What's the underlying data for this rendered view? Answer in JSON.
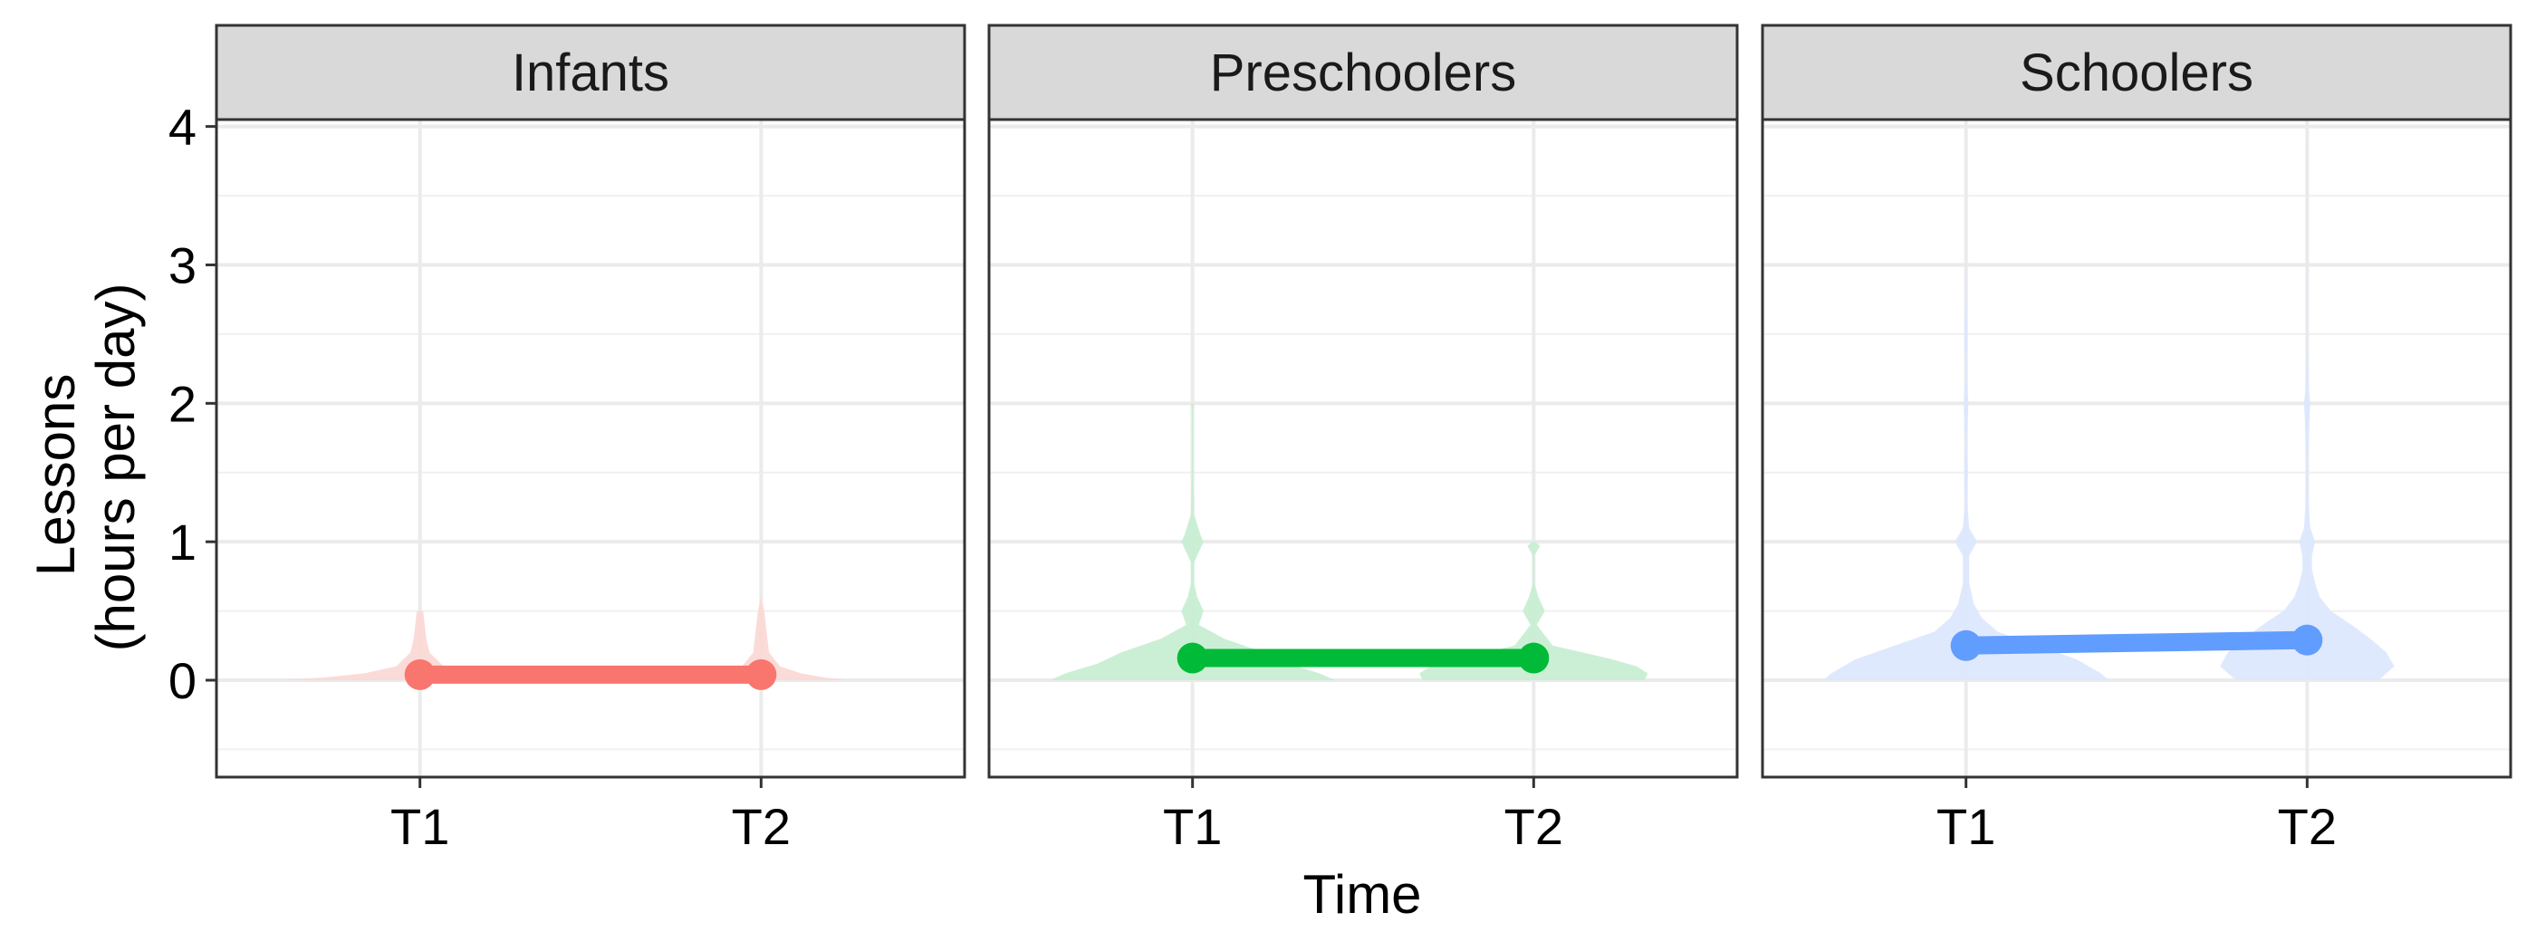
{
  "chart_data": {
    "type": "line",
    "facet_title": "",
    "xlabel": "Time",
    "ylabel_lines": [
      "Lessons",
      "(hours per day)"
    ],
    "x_categories": [
      "T1",
      "T2"
    ],
    "ylim": [
      -0.7,
      4.05
    ],
    "y_ticks": [
      0,
      1,
      2,
      3,
      4
    ],
    "y_minor_ticks": [
      -0.5,
      0.5,
      1.5,
      2.5,
      3.5
    ],
    "grid": true,
    "legend": "none",
    "panels": [
      {
        "name": "Infants",
        "color": "#F8766D",
        "violin_fill": "#FBD9D6",
        "means": [
          0.04,
          0.04
        ],
        "violins": [
          {
            "x": "T1",
            "profile": [
              [
                0.0,
                0.9
              ],
              [
                0.02,
                0.6
              ],
              [
                0.05,
                0.35
              ],
              [
                0.1,
                0.15
              ],
              [
                0.2,
                0.06
              ],
              [
                0.3,
                0.04
              ],
              [
                0.5,
                0.02
              ]
            ]
          },
          {
            "x": "T2",
            "profile": [
              [
                0.0,
                0.55
              ],
              [
                0.02,
                0.4
              ],
              [
                0.05,
                0.25
              ],
              [
                0.1,
                0.12
              ],
              [
                0.2,
                0.05
              ],
              [
                0.3,
                0.04
              ],
              [
                0.5,
                0.02
              ],
              [
                0.6,
                0.0
              ]
            ]
          }
        ]
      },
      {
        "name": "Preschoolers",
        "color": "#00BA38",
        "violin_fill": "#C8EED3",
        "means": [
          0.16,
          0.16
        ],
        "violins": [
          {
            "x": "T1",
            "profile": [
              [
                0.0,
                0.9
              ],
              [
                0.05,
                0.8
              ],
              [
                0.12,
                0.6
              ],
              [
                0.2,
                0.45
              ],
              [
                0.3,
                0.2
              ],
              [
                0.4,
                0.04
              ],
              [
                0.5,
                0.07
              ],
              [
                0.6,
                0.03
              ],
              [
                0.7,
                0.01
              ],
              [
                0.85,
                0.01
              ],
              [
                0.95,
                0.05
              ],
              [
                1.0,
                0.07
              ],
              [
                1.05,
                0.05
              ],
              [
                1.2,
                0.01
              ],
              [
                1.5,
                0.005
              ],
              [
                1.95,
                0.004
              ],
              [
                2.0,
                0.01
              ]
            ]
          },
          {
            "x": "T2",
            "profile": [
              [
                0.0,
                0.7
              ],
              [
                0.05,
                0.72
              ],
              [
                0.1,
                0.65
              ],
              [
                0.15,
                0.5
              ],
              [
                0.25,
                0.12
              ],
              [
                0.4,
                0.02
              ],
              [
                0.5,
                0.07
              ],
              [
                0.6,
                0.03
              ],
              [
                0.7,
                0.005
              ],
              [
                0.9,
                0.005
              ],
              [
                0.97,
                0.04
              ],
              [
                1.0,
                0.01
              ]
            ]
          }
        ]
      },
      {
        "name": "Schoolers",
        "color": "#619CFF",
        "violin_fill": "#DDE8FE",
        "means": [
          0.25,
          0.29
        ],
        "violins": [
          {
            "x": "T1",
            "profile": [
              [
                0.0,
                0.9
              ],
              [
                0.05,
                0.85
              ],
              [
                0.15,
                0.7
              ],
              [
                0.25,
                0.45
              ],
              [
                0.35,
                0.2
              ],
              [
                0.45,
                0.1
              ],
              [
                0.55,
                0.05
              ],
              [
                0.7,
                0.02
              ],
              [
                0.9,
                0.02
              ],
              [
                1.0,
                0.07
              ],
              [
                1.1,
                0.02
              ],
              [
                1.3,
                0.006
              ],
              [
                1.5,
                0.012
              ],
              [
                1.7,
                0.005
              ],
              [
                2.0,
                0.015
              ],
              [
                2.2,
                0.004
              ],
              [
                2.5,
                0.01
              ],
              [
                2.8,
                0.003
              ],
              [
                3.0,
                0.003
              ]
            ]
          },
          {
            "x": "T2",
            "profile": [
              [
                0.0,
                0.45
              ],
              [
                0.1,
                0.55
              ],
              [
                0.2,
                0.5
              ],
              [
                0.3,
                0.4
              ],
              [
                0.4,
                0.28
              ],
              [
                0.5,
                0.15
              ],
              [
                0.6,
                0.08
              ],
              [
                0.7,
                0.05
              ],
              [
                0.8,
                0.03
              ],
              [
                0.9,
                0.03
              ],
              [
                1.0,
                0.05
              ],
              [
                1.1,
                0.02
              ],
              [
                1.3,
                0.008
              ],
              [
                1.6,
                0.006
              ],
              [
                1.9,
                0.015
              ],
              [
                2.0,
                0.02
              ],
              [
                2.1,
                0.01
              ],
              [
                2.4,
                0.003
              ],
              [
                3.0,
                0.003
              ],
              [
                3.5,
                0.002
              ],
              [
                3.9,
                0.002
              ]
            ]
          }
        ]
      }
    ]
  }
}
